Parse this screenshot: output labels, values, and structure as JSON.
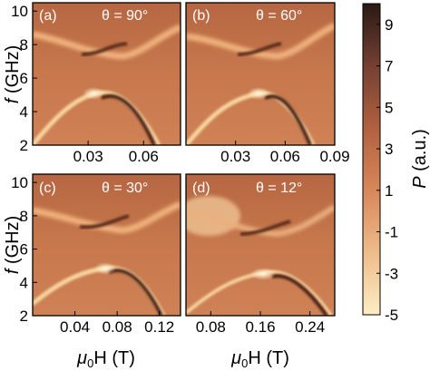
{
  "chart_data": [
    {
      "type": "heatmap",
      "panel_label": "(a)",
      "theta_label": "θ = 90°",
      "x_ticks": [
        "0.03",
        "0.06"
      ],
      "y_ticks": [
        "2",
        "4",
        "6",
        "8",
        "10"
      ],
      "xlim": [
        0.0,
        0.08
      ],
      "ylim": [
        2,
        10.5
      ],
      "modes": {
        "lower_branch_peak": {
          "x": 0.05,
          "f": 5.0
        },
        "upper_branch_min": {
          "x": 0.055,
          "f": 7.5
        }
      }
    },
    {
      "type": "heatmap",
      "panel_label": "(b)",
      "theta_label": "θ = 60°",
      "x_ticks": [
        "0.03",
        "0.06",
        "0.09"
      ],
      "y_ticks": [],
      "xlim": [
        0.0,
        0.09
      ],
      "ylim": [
        2,
        10.5
      ],
      "modes": {
        "lower_branch_peak": {
          "x": 0.05,
          "f": 5.0
        },
        "upper_branch_min": {
          "x": 0.055,
          "f": 7.5
        }
      }
    },
    {
      "type": "heatmap",
      "panel_label": "(c)",
      "theta_label": "θ = 30°",
      "x_ticks": [
        "0.04",
        "0.08",
        "0.12"
      ],
      "y_ticks": [
        "2",
        "4",
        "6",
        "8",
        "10"
      ],
      "xlim": [
        0.0,
        0.14
      ],
      "ylim": [
        2,
        10.5
      ],
      "modes": {
        "lower_branch_peak": {
          "x": 0.085,
          "f": 5.0
        },
        "upper_branch_min": {
          "x": 0.09,
          "f": 7.2
        }
      }
    },
    {
      "type": "heatmap",
      "panel_label": "(d)",
      "theta_label": "θ = 12°",
      "x_ticks": [
        "0.08",
        "0.16",
        "0.24"
      ],
      "y_ticks": [],
      "xlim": [
        0.04,
        0.28
      ],
      "ylim": [
        2,
        10.5
      ],
      "modes": {
        "lower_branch_peak": {
          "x": 0.15,
          "f": 4.9
        },
        "upper_branch_min": {
          "x": 0.17,
          "f": 7.0
        }
      }
    }
  ],
  "axes": {
    "ylabel_main": "f",
    "ylabel_unit": "(GHz)",
    "xlabel_main": "μ",
    "xlabel_sub": "0",
    "xlabel_rest": "H (T)"
  },
  "colorbar": {
    "label_main": "P",
    "label_unit": " (a.u.)",
    "range": [
      -5,
      10
    ],
    "ticks": [
      "9",
      "7",
      "5",
      "3",
      "1",
      "-1",
      "-3",
      "-5"
    ],
    "tick_values": [
      9,
      7,
      5,
      3,
      1,
      -1,
      -3,
      -5
    ],
    "colors": [
      "#fcedc4",
      "#e8a270",
      "#c46a45",
      "#8a4a34",
      "#2a1a14"
    ]
  }
}
